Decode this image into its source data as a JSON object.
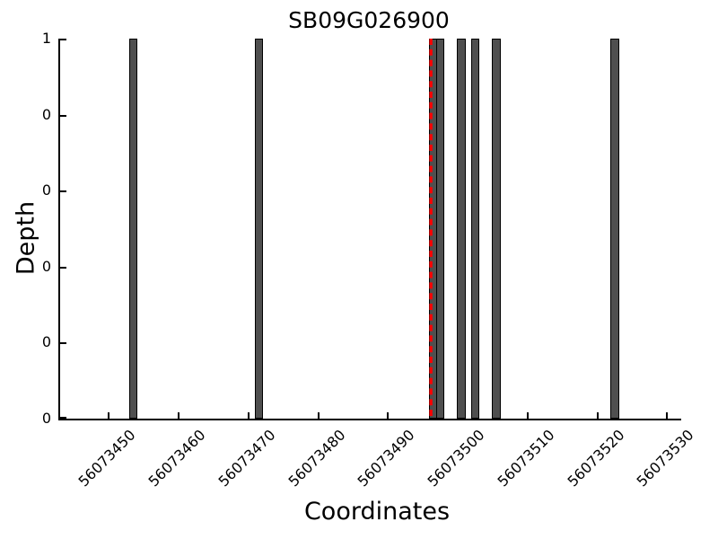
{
  "title": "SB09G026900",
  "chart_data": {
    "type": "bar",
    "title": "SB09G026900",
    "xlabel": "Coordinates",
    "ylabel": "Depth",
    "xlim": [
      56073443,
      56073532
    ],
    "ylim": [
      0,
      1
    ],
    "grid": false,
    "legend": null,
    "x_ticks": [
      56073450,
      56073460,
      56073470,
      56073480,
      56073490,
      56073500,
      56073510,
      56073520,
      56073530
    ],
    "y_ticks": {
      "values": [
        0,
        0.2,
        0.4,
        0.6,
        0.8,
        1
      ],
      "labels": [
        "0",
        "0",
        "0",
        "0",
        "0",
        "1"
      ]
    },
    "bars": {
      "align": "left",
      "width": 1,
      "positions": [
        56073453,
        56073471,
        56073496,
        56073497,
        56073500,
        56073502,
        56073505,
        56073522
      ],
      "depths": [
        1,
        1,
        1,
        1,
        1,
        1,
        1,
        1
      ]
    },
    "marker_line": {
      "x": 56073496,
      "orientation": "vertical",
      "style": "dashed",
      "color": "#ff0000"
    },
    "colors": {
      "bar_fill": "#4f4f4f",
      "bar_edge": "#000000",
      "axis": "#000000",
      "text": "#000000",
      "background": "#ffffff"
    }
  }
}
